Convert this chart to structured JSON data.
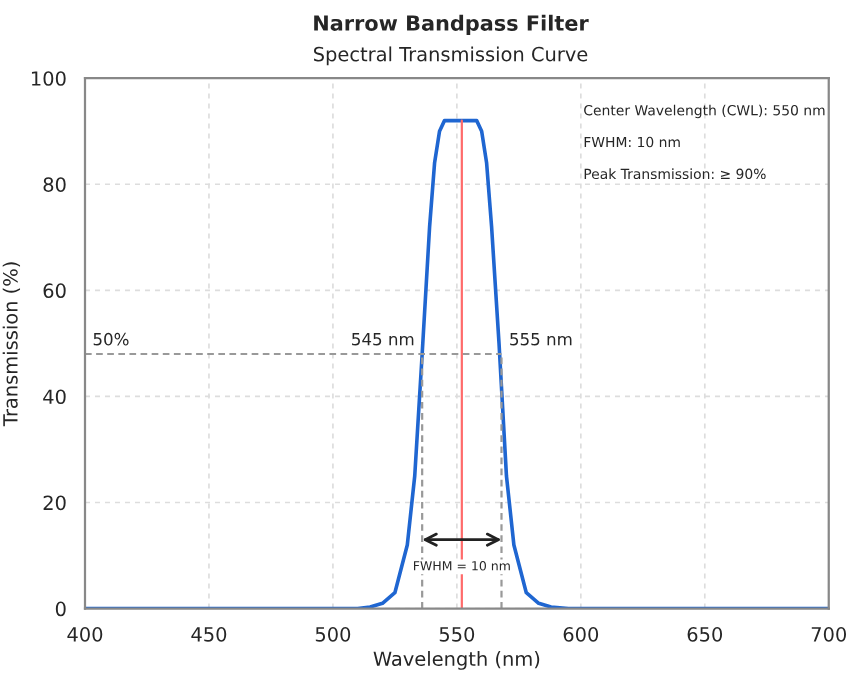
{
  "chart_data": {
    "type": "line",
    "title": "Narrow Bandpass Filter",
    "subtitle": "Spectral Transmission Curve",
    "xlabel": "Wavelength (nm)",
    "ylabel": "Transmission (%)",
    "series": [
      {
        "color": "#1f66d1",
        "x": [
          400,
          510,
          515,
          520,
          525,
          530,
          533,
          536,
          539,
          541,
          543,
          545,
          552,
          558,
          560,
          562,
          564,
          567,
          570,
          573,
          578,
          583,
          588,
          595,
          700
        ],
        "values": [
          0,
          0,
          0.3,
          1,
          3,
          12,
          25,
          48,
          72,
          84,
          90,
          92,
          92,
          92,
          90,
          84,
          72,
          50,
          25,
          12,
          3,
          1,
          0.3,
          0,
          0
        ]
      }
    ],
    "xlim": [
      400,
      700
    ],
    "xticks": [
      400,
      450,
      500,
      550,
      600,
      650,
      700
    ],
    "ylim": [
      0,
      100
    ],
    "yticks": [
      0,
      20,
      40,
      60,
      80,
      100
    ],
    "grid": true,
    "marker": "none",
    "line_style": "solid",
    "ref_lines": [
      {
        "axis": "x",
        "value": 552,
        "label": null,
        "color": "#ff6b6b",
        "line_style": "solid"
      },
      {
        "axis": "y",
        "value": 48,
        "label": null,
        "color": "#999999",
        "line_style": "dashed"
      },
      {
        "axis": "x",
        "value": 536,
        "label": null,
        "color": "#999999",
        "line_style": "dashed"
      },
      {
        "axis": "x",
        "value": 568,
        "label": null,
        "color": "#999999",
        "line_style": "dashed"
      }
    ],
    "annotations": [
      {
        "text": "FWHM = 10 nm",
        "x": 552,
        "y": 10
      },
      "50%",
      "545 nm",
      "555 nm",
      "Center Wavelength (CWL): 550 nm",
      "FWHM: 10 nm",
      "Peak Transmission: ≥ 90%"
    ]
  }
}
